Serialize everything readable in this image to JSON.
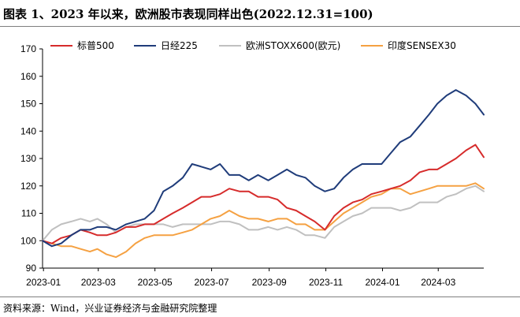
{
  "title": "图表 1、2023 年以来，欧洲股市表现同样出色(2022.12.31=100)",
  "source": "资料来源：Wind，兴业证券经济与金融研究院整理",
  "chart_data": {
    "type": "line",
    "title": "图表 1、2023 年以来，欧洲股市表现同样出色(2022.12.31=100)",
    "xlabel": "",
    "ylabel": "",
    "ylim": [
      90,
      170
    ],
    "yticks": [
      90,
      100,
      110,
      120,
      130,
      140,
      150,
      160,
      170
    ],
    "xticks": [
      "2023-01",
      "2023-03",
      "2023-05",
      "2023-07",
      "2023-09",
      "2023-11",
      "2024-01",
      "2024-03"
    ],
    "xrange": [
      "2022-12-31",
      "2024-04-19"
    ],
    "grid": false,
    "legend": "top",
    "x": [
      "2022-12-31",
      "2023-01-10",
      "2023-01-20",
      "2023-01-31",
      "2023-02-10",
      "2023-02-20",
      "2023-02-28",
      "2023-03-10",
      "2023-03-20",
      "2023-03-31",
      "2023-04-10",
      "2023-04-20",
      "2023-04-30",
      "2023-05-10",
      "2023-05-20",
      "2023-05-31",
      "2023-06-10",
      "2023-06-20",
      "2023-06-30",
      "2023-07-10",
      "2023-07-20",
      "2023-07-31",
      "2023-08-10",
      "2023-08-20",
      "2023-08-31",
      "2023-09-10",
      "2023-09-20",
      "2023-09-30",
      "2023-10-10",
      "2023-10-20",
      "2023-10-31",
      "2023-11-10",
      "2023-11-20",
      "2023-11-30",
      "2023-12-10",
      "2023-12-20",
      "2023-12-31",
      "2024-01-10",
      "2024-01-20",
      "2024-01-31",
      "2024-02-10",
      "2024-02-20",
      "2024-02-29",
      "2024-03-10",
      "2024-03-20",
      "2024-03-31",
      "2024-04-10",
      "2024-04-19"
    ],
    "series": [
      {
        "name": "标普500",
        "color": "#d62b2b",
        "values": [
          100,
          99,
          101,
          102,
          104,
          103,
          102,
          102,
          103,
          105,
          105,
          106,
          106,
          108,
          110,
          112,
          114,
          116,
          116,
          117,
          119,
          118,
          118,
          116,
          116,
          115,
          112,
          111,
          109,
          107,
          104,
          109,
          112,
          114,
          115,
          117,
          118,
          119,
          120,
          122,
          125,
          126,
          126,
          128,
          130,
          133,
          135,
          130.5
        ]
      },
      {
        "name": "日经225",
        "color": "#1f3c7a",
        "values": [
          100,
          98,
          99,
          102,
          104,
          104,
          105,
          105,
          104,
          106,
          107,
          108,
          111,
          118,
          120,
          123,
          128,
          127,
          126,
          128,
          124,
          124,
          122,
          124,
          122,
          124,
          126,
          124,
          123,
          120,
          118,
          119,
          123,
          126,
          128,
          128,
          128,
          132,
          136,
          138,
          142,
          146,
          150,
          153,
          155,
          153,
          150,
          146
        ]
      },
      {
        "name": "欧洲STOXX600(欧元)",
        "color": "#c0c0c0",
        "values": [
          100,
          104,
          106,
          107,
          108,
          107,
          108,
          106,
          103,
          105,
          106,
          106,
          106,
          106,
          105,
          106,
          106,
          106,
          106,
          107,
          107,
          106,
          104,
          104,
          105,
          104,
          105,
          104,
          102,
          102,
          101,
          105,
          107,
          109,
          110,
          112,
          112,
          112,
          111,
          112,
          114,
          114,
          114,
          116,
          117,
          119,
          120,
          118
        ]
      },
      {
        "name": "印度SENSEX30",
        "color": "#f5a142",
        "values": [
          100,
          99,
          98,
          98,
          97,
          96,
          97,
          95,
          94,
          96,
          99,
          101,
          102,
          102,
          102,
          103,
          104,
          106,
          108,
          109,
          111,
          109,
          108,
          108,
          107,
          108,
          108,
          106,
          106,
          104,
          104,
          107,
          110,
          112,
          114,
          116,
          117,
          119,
          119,
          117,
          118,
          119,
          120,
          120,
          120,
          120,
          121,
          119
        ]
      }
    ]
  }
}
